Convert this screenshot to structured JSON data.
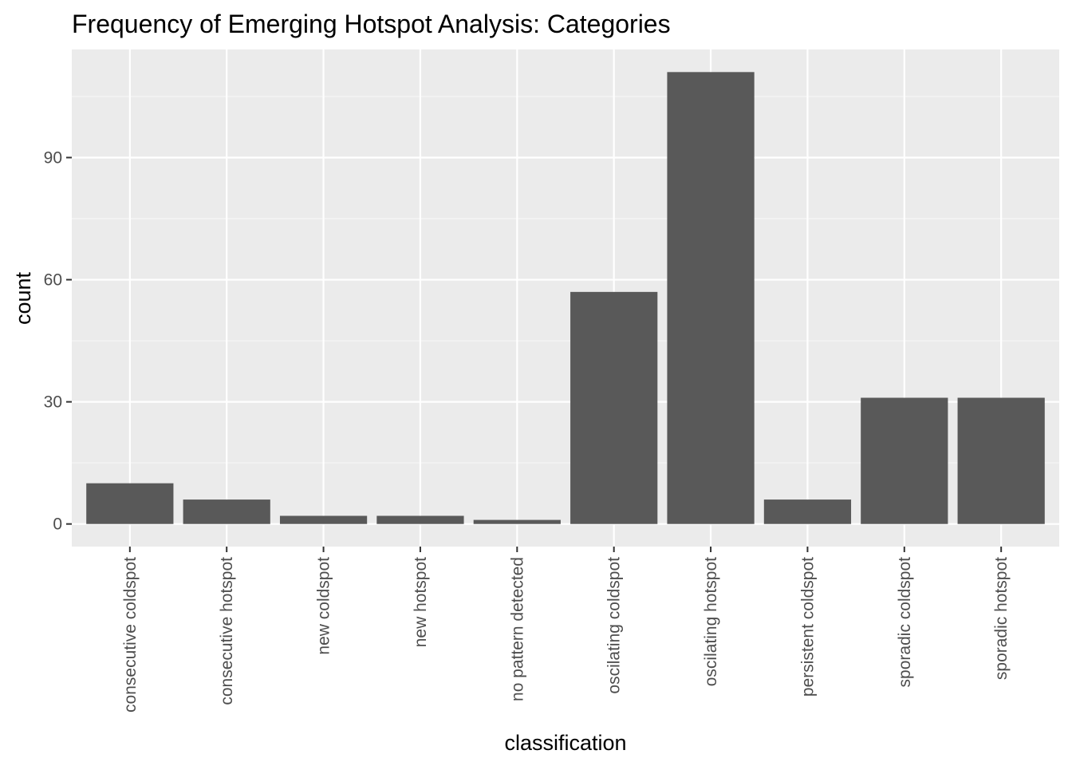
{
  "chart_data": {
    "type": "bar",
    "title": "Frequency of Emerging Hotspot Analysis: Categories",
    "xlabel": "classification",
    "ylabel": "count",
    "categories": [
      "consecutive coldspot",
      "consecutive hotspot",
      "new coldspot",
      "new hotspot",
      "no pattern detected",
      "oscilating coldspot",
      "oscilating hotspot",
      "persistent coldspot",
      "sporadic coldspot",
      "sporadic hotspot"
    ],
    "values": [
      10,
      6,
      2,
      2,
      1,
      57,
      111,
      6,
      31,
      31
    ],
    "ylim": [
      -5.55,
      116.55
    ],
    "yticks": [
      0,
      30,
      60,
      90
    ],
    "grid": true,
    "legend": "none",
    "colors": {
      "panel": "#ebebeb",
      "grid_major": "#ffffff",
      "grid_minor": "#f5f5f5",
      "bar": "#595959",
      "tick_label": "#4d4d4d",
      "tick": "#333333"
    }
  }
}
